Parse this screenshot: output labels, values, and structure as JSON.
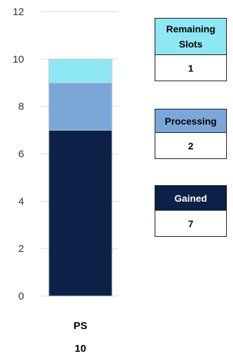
{
  "chart_data": {
    "type": "bar",
    "stacked": true,
    "categories": [
      "PS"
    ],
    "category_totals": [
      "10"
    ],
    "series": [
      {
        "name": "Gained",
        "values": [
          7
        ],
        "color": "#0b2147"
      },
      {
        "name": "Processing",
        "values": [
          2
        ],
        "color": "#7ba7d8"
      },
      {
        "name": "Remaining Slots",
        "values": [
          1
        ],
        "color": "#8ee7f4"
      }
    ],
    "ylim": [
      0,
      12
    ],
    "yticks": [
      "0",
      "2",
      "4",
      "6",
      "8",
      "10",
      "12"
    ],
    "grid": true,
    "legend_placement": "right"
  },
  "legend": {
    "remaining": {
      "label": "Remaining Slots",
      "value": "1",
      "color": "#8ee7f4"
    },
    "processing": {
      "label": "Processing",
      "value": "2",
      "color": "#7ba7d8"
    },
    "gained": {
      "label": "Gained",
      "value": "7",
      "color": "#0b2147"
    }
  }
}
